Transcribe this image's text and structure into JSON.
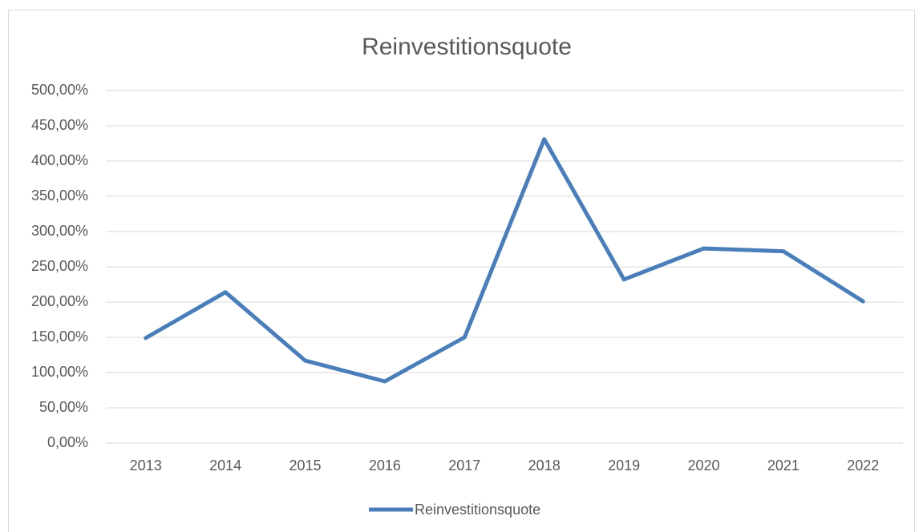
{
  "chart_data": {
    "type": "line",
    "title": "Reinvestitionsquote",
    "categories": [
      "2013",
      "2014",
      "2015",
      "2016",
      "2017",
      "2018",
      "2019",
      "2020",
      "2021",
      "2022"
    ],
    "series": [
      {
        "name": "Reinvestitionsquote",
        "color": "#4a7ebb",
        "values": [
          149,
          214,
          117,
          87.5,
          150,
          431,
          232,
          276,
          272,
          201
        ]
      }
    ],
    "ylim": [
      0,
      500
    ],
    "yticks": [
      {
        "value": 0,
        "label": "0,00%"
      },
      {
        "value": 50,
        "label": "50,00%"
      },
      {
        "value": 100,
        "label": "100,00%"
      },
      {
        "value": 150,
        "label": "150,00%"
      },
      {
        "value": 200,
        "label": "200,00%"
      },
      {
        "value": 250,
        "label": "250,00%"
      },
      {
        "value": 300,
        "label": "300,00%"
      },
      {
        "value": 350,
        "label": "350,00%"
      },
      {
        "value": 400,
        "label": "400,00%"
      },
      {
        "value": 450,
        "label": "450,00%"
      },
      {
        "value": 500,
        "label": "500,00%"
      }
    ],
    "grid": true,
    "legend": "bottom"
  }
}
